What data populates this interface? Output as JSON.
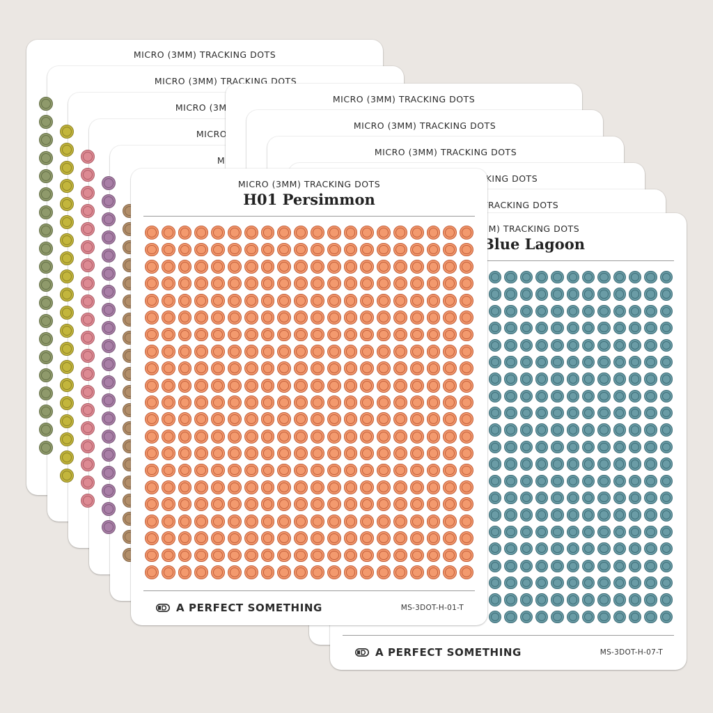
{
  "product_line": "MICRO (3MM) TRACKING DOTS",
  "brand": "A PERFECT SOMETHING",
  "colors": {
    "background": "#ebe7e3",
    "sheet": "#ffffff"
  },
  "left_stack": [
    {
      "title": "",
      "fill": "#8f9a6b",
      "ring": "#667148"
    },
    {
      "title": "",
      "fill": "#c3b63c",
      "ring": "#8e8326"
    },
    {
      "title": "",
      "fill": "#dd8a93",
      "ring": "#b05f69"
    },
    {
      "title": "",
      "fill": "#a97fa7",
      "ring": "#7d5a7c"
    },
    {
      "title": "",
      "fill": "#b38f6a",
      "ring": "#86684a"
    }
  ],
  "right_stack": [
    {
      "title": ""
    },
    {
      "title": ""
    },
    {
      "title": ""
    },
    {
      "title": ""
    },
    {
      "title": ""
    }
  ],
  "front_left": {
    "title": "H01 Persimmon",
    "sku": "MS-3DOT-H-01-T",
    "fill": "#f39a6e",
    "ring": "#c4603c",
    "icon": "brand-logo-icon"
  },
  "front_right": {
    "title": "Blue Lagoon",
    "subtitle_visible": "MM) TRACKING DOTS",
    "sku": "MS-3DOT-H-07-T",
    "fill": "#6a9ca6",
    "ring": "#3f6f79",
    "icon": "brand-logo-icon"
  }
}
